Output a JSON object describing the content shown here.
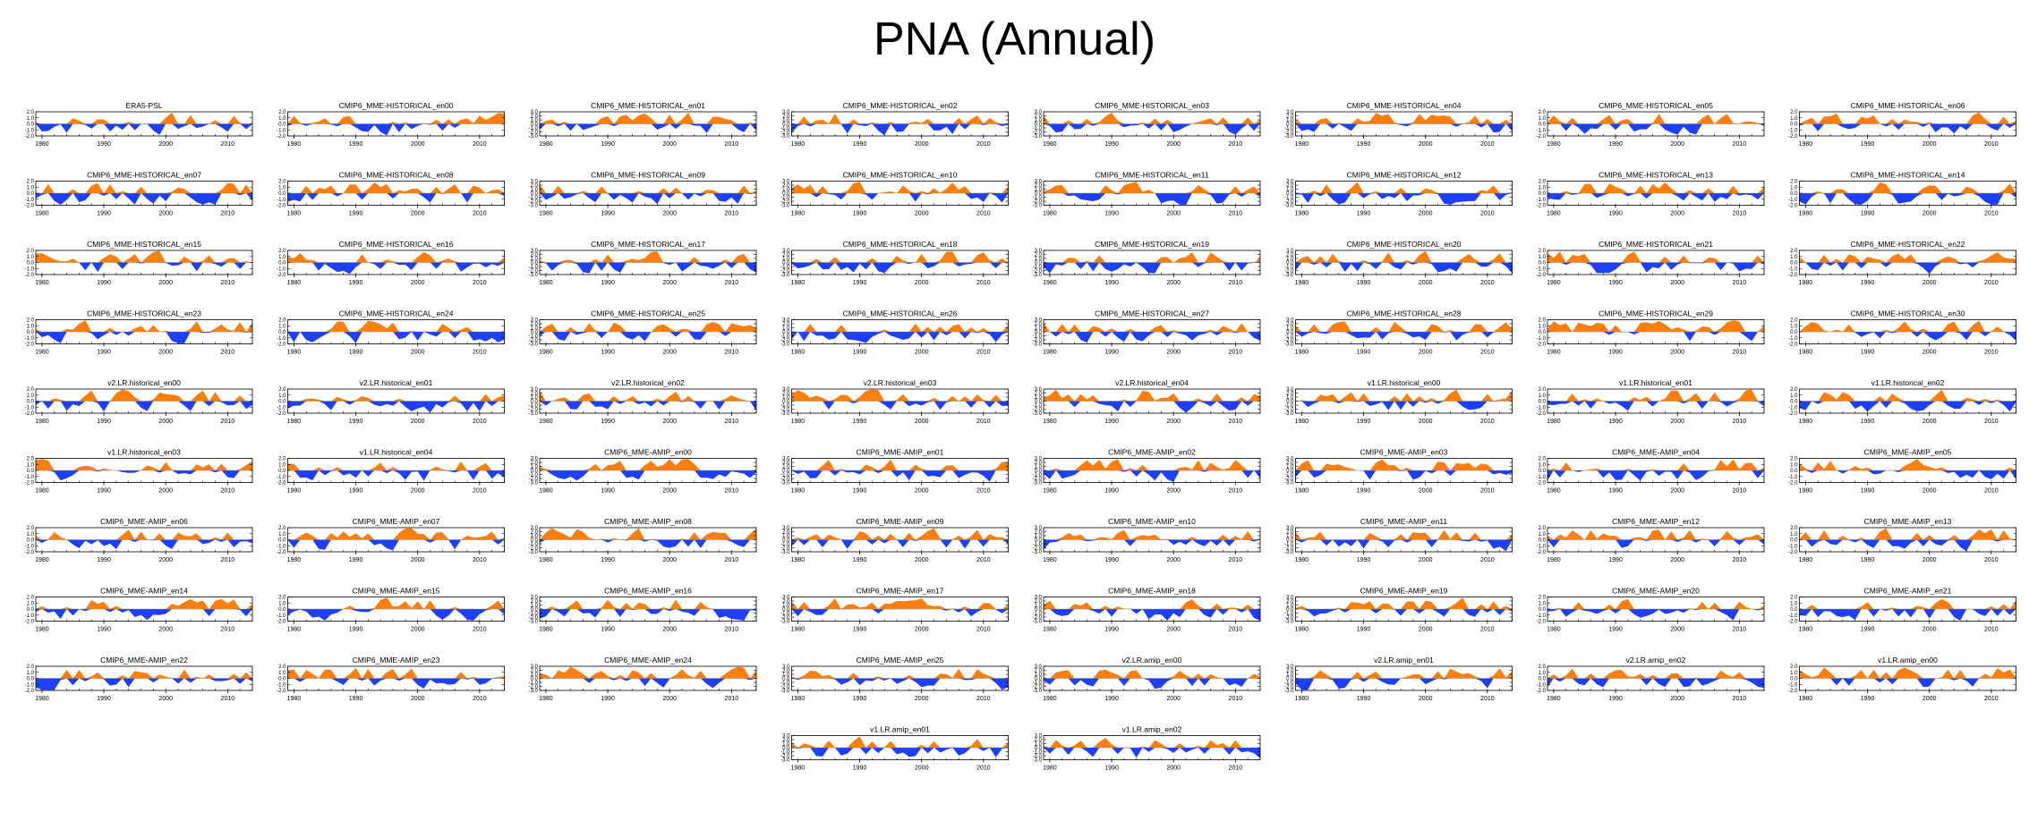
{
  "title": "PNA (Annual)",
  "colors": {
    "positive": "#ff7f0e",
    "negative": "#1f3fff",
    "axis": "#000000"
  },
  "chart_data": {
    "type": "area",
    "description_kind": "small-multiples anomaly time series",
    "xlim": [
      1979,
      2014
    ],
    "xticks": [
      1980,
      1990,
      2000,
      2010
    ],
    "panels": [
      {
        "name": "ERA5-PSL",
        "yticks": [
          "2.0",
          "1.0",
          "0.0",
          "-1.0",
          "-2.0"
        ],
        "ylim": [
          -2,
          2
        ]
      },
      {
        "name": "CMIP6_MME-HISTORICAL_en00",
        "yticks": [
          "2.0",
          "1.0",
          "0.0",
          "-1.0",
          "-2.0"
        ],
        "ylim": [
          -2,
          2
        ]
      },
      {
        "name": "CMIP6_MME-HISTORICAL_en01",
        "yticks": [
          "3.0",
          "2.0",
          "1.0",
          "0.0",
          "-1.0",
          "-2.0",
          "-3.0"
        ],
        "ylim": [
          -3,
          3
        ]
      },
      {
        "name": "CMIP6_MME-HISTORICAL_en02",
        "yticks": [
          "3.0",
          "2.0",
          "1.0",
          "0.0",
          "-1.0",
          "-2.0",
          "-3.0"
        ],
        "ylim": [
          -3,
          3
        ]
      },
      {
        "name": "CMIP6_MME-HISTORICAL_en03",
        "yticks": [
          "3.0",
          "2.0",
          "1.0",
          "0.0",
          "-1.0",
          "-2.0",
          "-3.0"
        ],
        "ylim": [
          -3,
          3
        ]
      },
      {
        "name": "CMIP6_MME-HISTORICAL_en04",
        "yticks": [
          "3.0",
          "2.0",
          "1.0",
          "0.0",
          "-1.0",
          "-2.0",
          "-3.0"
        ],
        "ylim": [
          -3,
          3
        ]
      },
      {
        "name": "CMIP6_MME-HISTORICAL_en05",
        "yticks": [
          "2.0",
          "1.0",
          "0.0",
          "-1.0",
          "-2.0"
        ],
        "ylim": [
          -2,
          2
        ]
      },
      {
        "name": "CMIP6_MME-HISTORICAL_en06",
        "yticks": [
          "2.0",
          "1.0",
          "0.0",
          "-1.0",
          "-2.0"
        ],
        "ylim": [
          -2,
          2
        ]
      },
      {
        "name": "CMIP6_MME-HISTORICAL_en07",
        "yticks": [
          "2.0",
          "1.0",
          "0.0",
          "-1.0",
          "-2.0"
        ],
        "ylim": [
          -2,
          2
        ]
      },
      {
        "name": "CMIP6_MME-HISTORICAL_en08",
        "yticks": [
          "2.0",
          "1.0",
          "0.0",
          "-1.0",
          "-2.0"
        ],
        "ylim": [
          -2,
          2
        ]
      },
      {
        "name": "CMIP6_MME-HISTORICAL_en09",
        "yticks": [
          "3.0",
          "2.0",
          "1.0",
          "0.0",
          "-1.0",
          "-2.0",
          "-3.0"
        ],
        "ylim": [
          -3,
          3
        ]
      },
      {
        "name": "CMIP6_MME-HISTORICAL_en10",
        "yticks": [
          "3.0",
          "2.0",
          "1.0",
          "0.0",
          "-1.0",
          "-2.0",
          "-3.0"
        ],
        "ylim": [
          -3,
          3
        ]
      },
      {
        "name": "CMIP6_MME-HISTORICAL_en11",
        "yticks": [
          "3.0",
          "2.0",
          "1.0",
          "0.0",
          "-1.0",
          "-2.0",
          "-3.0"
        ],
        "ylim": [
          -3,
          3
        ]
      },
      {
        "name": "CMIP6_MME-HISTORICAL_en12",
        "yticks": [
          "3.0",
          "2.0",
          "1.0",
          "0.0",
          "-1.0",
          "-2.0",
          "-3.0"
        ],
        "ylim": [
          -3,
          3
        ]
      },
      {
        "name": "CMIP6_MME-HISTORICAL_en13",
        "yticks": [
          "2.0",
          "1.0",
          "0.0",
          "-1.0",
          "-2.0"
        ],
        "ylim": [
          -2,
          2
        ]
      },
      {
        "name": "CMIP6_MME-HISTORICAL_en14",
        "yticks": [
          "2.0",
          "1.0",
          "0.0",
          "-1.0",
          "-2.0"
        ],
        "ylim": [
          -2,
          2
        ]
      },
      {
        "name": "CMIP6_MME-HISTORICAL_en15",
        "yticks": [
          "2.0",
          "1.0",
          "0.0",
          "-1.0",
          "-2.0"
        ],
        "ylim": [
          -2,
          2
        ]
      },
      {
        "name": "CMIP6_MME-HISTORICAL_en16",
        "yticks": [
          "2.0",
          "1.0",
          "0.0",
          "-1.0",
          "-2.0"
        ],
        "ylim": [
          -2,
          2
        ]
      },
      {
        "name": "CMIP6_MME-HISTORICAL_en17",
        "yticks": [
          "3.0",
          "2.0",
          "1.0",
          "0.0",
          "-1.0",
          "-2.0",
          "-3.0"
        ],
        "ylim": [
          -3,
          3
        ]
      },
      {
        "name": "CMIP6_MME-HISTORICAL_en18",
        "yticks": [
          "3.0",
          "2.0",
          "1.0",
          "0.0",
          "-1.0",
          "-2.0",
          "-3.0"
        ],
        "ylim": [
          -3,
          3
        ]
      },
      {
        "name": "CMIP6_MME-HISTORICAL_en19",
        "yticks": [
          "3.0",
          "2.0",
          "1.0",
          "0.0",
          "-1.0",
          "-2.0",
          "-3.0"
        ],
        "ylim": [
          -3,
          3
        ]
      },
      {
        "name": "CMIP6_MME-HISTORICAL_en20",
        "yticks": [
          "3.0",
          "2.0",
          "1.0",
          "0.0",
          "-1.0",
          "-2.0",
          "-3.0"
        ],
        "ylim": [
          -3,
          3
        ]
      },
      {
        "name": "CMIP6_MME-HISTORICAL_en21",
        "yticks": [
          "2.0",
          "1.0",
          "0.0",
          "-1.0",
          "-2.0"
        ],
        "ylim": [
          -2,
          2
        ]
      },
      {
        "name": "CMIP6_MME-HISTORICAL_en22",
        "yticks": [
          "2.0",
          "1.0",
          "0.0",
          "-1.0",
          "-2.0"
        ],
        "ylim": [
          -2,
          2
        ]
      },
      {
        "name": "CMIP6_MME-HISTORICAL_en23",
        "yticks": [
          "2.0",
          "1.0",
          "0.0",
          "-1.0",
          "-2.0"
        ],
        "ylim": [
          -2,
          2
        ]
      },
      {
        "name": "CMIP6_MME-HISTORICAL_en24",
        "yticks": [
          "2.0",
          "1.0",
          "0.0",
          "-1.0",
          "-2.0"
        ],
        "ylim": [
          -2,
          2
        ]
      },
      {
        "name": "CMIP6_MME-HISTORICAL_en25",
        "yticks": [
          "3.0",
          "2.0",
          "1.0",
          "0.0",
          "-1.0",
          "-2.0",
          "-3.0"
        ],
        "ylim": [
          -3,
          3
        ]
      },
      {
        "name": "CMIP6_MME-HISTORICAL_en26",
        "yticks": [
          "3.0",
          "2.0",
          "1.0",
          "0.0",
          "-1.0",
          "-2.0",
          "-3.0"
        ],
        "ylim": [
          -3,
          3
        ]
      },
      {
        "name": "CMIP6_MME-HISTORICAL_en27",
        "yticks": [
          "3.0",
          "2.0",
          "1.0",
          "0.0",
          "-1.0",
          "-2.0",
          "-3.0"
        ],
        "ylim": [
          -3,
          3
        ]
      },
      {
        "name": "CMIP6_MME-HISTORICAL_en28",
        "yticks": [
          "3.0",
          "2.0",
          "1.0",
          "0.0",
          "-1.0",
          "-2.0",
          "-3.0"
        ],
        "ylim": [
          -3,
          3
        ]
      },
      {
        "name": "CMIP6_MME-HISTORICAL_en29",
        "yticks": [
          "2.0",
          "1.0",
          "0.0",
          "-1.0",
          "-2.0"
        ],
        "ylim": [
          -2,
          2
        ]
      },
      {
        "name": "CMIP6_MME-HISTORICAL_en30",
        "yticks": [
          "2.0",
          "1.0",
          "0.0",
          "-1.0",
          "-2.0"
        ],
        "ylim": [
          -2,
          2
        ]
      },
      {
        "name": "v2.LR.historical_en00",
        "yticks": [
          "2.0",
          "1.0",
          "0.0",
          "-1.0",
          "-2.0"
        ],
        "ylim": [
          -2,
          2
        ]
      },
      {
        "name": "v2.LR.historical_en01",
        "yticks": [
          "2.0",
          "1.0",
          "0.0",
          "-1.0",
          "-2.0"
        ],
        "ylim": [
          -2,
          2
        ]
      },
      {
        "name": "v2.LR.historical_en02",
        "yticks": [
          "3.0",
          "2.0",
          "1.0",
          "0.0",
          "-1.0",
          "-2.0",
          "-3.0"
        ],
        "ylim": [
          -3,
          3
        ]
      },
      {
        "name": "v2.LR.historical_en03",
        "yticks": [
          "3.0",
          "2.0",
          "1.0",
          "0.0",
          "-1.0",
          "-2.0",
          "-3.0"
        ],
        "ylim": [
          -3,
          3
        ]
      },
      {
        "name": "v2.LR.historical_en04",
        "yticks": [
          "3.0",
          "2.0",
          "1.0",
          "0.0",
          "-1.0",
          "-2.0",
          "-3.0"
        ],
        "ylim": [
          -3,
          3
        ]
      },
      {
        "name": "v1.LR.historical_en00",
        "yticks": [
          "3.0",
          "2.0",
          "1.0",
          "0.0",
          "-1.0",
          "-2.0",
          "-3.0"
        ],
        "ylim": [
          -3,
          3
        ]
      },
      {
        "name": "v1.LR.historical_en01",
        "yticks": [
          "2.0",
          "1.0",
          "0.0",
          "-1.0",
          "-2.0"
        ],
        "ylim": [
          -2,
          2
        ]
      },
      {
        "name": "v1.LR.historical_en02",
        "yticks": [
          "2.0",
          "1.0",
          "0.0",
          "-1.0",
          "-2.0"
        ],
        "ylim": [
          -2,
          2
        ]
      },
      {
        "name": "v1.LR.historical_en03",
        "yticks": [
          "2.0",
          "1.0",
          "0.0",
          "-1.0",
          "-2.0"
        ],
        "ylim": [
          -2,
          2
        ]
      },
      {
        "name": "v1.LR.historical_en04",
        "yticks": [
          "2.0",
          "1.0",
          "0.0",
          "-1.0",
          "-2.0"
        ],
        "ylim": [
          -2,
          2
        ]
      },
      {
        "name": "CMIP6_MME-AMIP_en00",
        "yticks": [
          "3.0",
          "2.0",
          "1.0",
          "0.0",
          "-1.0",
          "-2.0",
          "-3.0"
        ],
        "ylim": [
          -3,
          3
        ]
      },
      {
        "name": "CMIP6_MME-AMIP_en01",
        "yticks": [
          "3.0",
          "2.0",
          "1.0",
          "0.0",
          "-1.0",
          "-2.0",
          "-3.0"
        ],
        "ylim": [
          -3,
          3
        ]
      },
      {
        "name": "CMIP6_MME-AMIP_en02",
        "yticks": [
          "3.0",
          "2.0",
          "1.0",
          "0.0",
          "-1.0",
          "-2.0",
          "-3.0"
        ],
        "ylim": [
          -3,
          3
        ]
      },
      {
        "name": "CMIP6_MME-AMIP_en03",
        "yticks": [
          "3.0",
          "2.0",
          "1.0",
          "0.0",
          "-1.0",
          "-2.0",
          "-3.0"
        ],
        "ylim": [
          -3,
          3
        ]
      },
      {
        "name": "CMIP6_MME-AMIP_en04",
        "yticks": [
          "2.0",
          "1.0",
          "0.0",
          "-1.0",
          "-2.0"
        ],
        "ylim": [
          -2,
          2
        ]
      },
      {
        "name": "CMIP6_MME-AMIP_en05",
        "yticks": [
          "2.0",
          "1.0",
          "0.0",
          "-1.0",
          "-2.0"
        ],
        "ylim": [
          -2,
          2
        ]
      },
      {
        "name": "CMIP6_MME-AMIP_en06",
        "yticks": [
          "2.0",
          "1.0",
          "0.0",
          "-1.0",
          "-2.0"
        ],
        "ylim": [
          -2,
          2
        ]
      },
      {
        "name": "CMIP6_MME-AMIP_en07",
        "yticks": [
          "2.0",
          "1.0",
          "0.0",
          "-1.0",
          "-2.0"
        ],
        "ylim": [
          -2,
          2
        ]
      },
      {
        "name": "CMIP6_MME-AMIP_en08",
        "yticks": [
          "3.0",
          "2.0",
          "1.0",
          "0.0",
          "-1.0",
          "-2.0",
          "-3.0"
        ],
        "ylim": [
          -3,
          3
        ]
      },
      {
        "name": "CMIP6_MME-AMIP_en09",
        "yticks": [
          "3.0",
          "2.0",
          "1.0",
          "0.0",
          "-1.0",
          "-2.0",
          "-3.0"
        ],
        "ylim": [
          -3,
          3
        ]
      },
      {
        "name": "CMIP6_MME-AMIP_en10",
        "yticks": [
          "3.0",
          "2.0",
          "1.0",
          "0.0",
          "-1.0",
          "-2.0",
          "-3.0"
        ],
        "ylim": [
          -3,
          3
        ]
      },
      {
        "name": "CMIP6_MME-AMIP_en11",
        "yticks": [
          "3.0",
          "2.0",
          "1.0",
          "0.0",
          "-1.0",
          "-2.0",
          "-3.0"
        ],
        "ylim": [
          -3,
          3
        ]
      },
      {
        "name": "CMIP6_MME-AMIP_en12",
        "yticks": [
          "2.0",
          "1.0",
          "0.0",
          "-1.0",
          "-2.0"
        ],
        "ylim": [
          -2,
          2
        ]
      },
      {
        "name": "CMIP6_MME-AMIP_en13",
        "yticks": [
          "2.0",
          "1.0",
          "0.0",
          "-1.0",
          "-2.0"
        ],
        "ylim": [
          -2,
          2
        ]
      },
      {
        "name": "CMIP6_MME-AMIP_en14",
        "yticks": [
          "2.0",
          "1.0",
          "0.0",
          "-1.0",
          "-2.0"
        ],
        "ylim": [
          -2,
          2
        ]
      },
      {
        "name": "CMIP6_MME-AMIP_en15",
        "yticks": [
          "2.0",
          "1.0",
          "0.0",
          "-1.0",
          "-2.0"
        ],
        "ylim": [
          -2,
          2
        ]
      },
      {
        "name": "CMIP6_MME-AMIP_en16",
        "yticks": [
          "3.0",
          "2.0",
          "1.0",
          "0.0",
          "-1.0",
          "-2.0",
          "-3.0"
        ],
        "ylim": [
          -3,
          3
        ]
      },
      {
        "name": "CMIP6_MME-AMIP_en17",
        "yticks": [
          "3.0",
          "2.0",
          "1.0",
          "0.0",
          "-1.0",
          "-2.0",
          "-3.0"
        ],
        "ylim": [
          -3,
          3
        ]
      },
      {
        "name": "CMIP6_MME-AMIP_en18",
        "yticks": [
          "3.0",
          "2.0",
          "1.0",
          "0.0",
          "-1.0",
          "-2.0",
          "-3.0"
        ],
        "ylim": [
          -3,
          3
        ]
      },
      {
        "name": "CMIP6_MME-AMIP_en19",
        "yticks": [
          "3.0",
          "2.0",
          "1.0",
          "0.0",
          "-1.0",
          "-2.0",
          "-3.0"
        ],
        "ylim": [
          -3,
          3
        ]
      },
      {
        "name": "CMIP6_MME-AMIP_en20",
        "yticks": [
          "2.0",
          "1.0",
          "0.0",
          "-1.0",
          "-2.0"
        ],
        "ylim": [
          -2,
          2
        ]
      },
      {
        "name": "CMIP6_MME-AMIP_en21",
        "yticks": [
          "2.0",
          "1.0",
          "0.0",
          "-1.0",
          "-2.0"
        ],
        "ylim": [
          -2,
          2
        ]
      },
      {
        "name": "CMIP6_MME-AMIP_en22",
        "yticks": [
          "2.0",
          "1.0",
          "0.0",
          "-1.0",
          "-2.0"
        ],
        "ylim": [
          -2,
          2
        ]
      },
      {
        "name": "CMIP6_MME-AMIP_en23",
        "yticks": [
          "2.0",
          "1.0",
          "0.0",
          "-1.0",
          "-2.0"
        ],
        "ylim": [
          -2,
          2
        ]
      },
      {
        "name": "CMIP6_MME-AMIP_en24",
        "yticks": [
          "3.0",
          "2.0",
          "1.0",
          "0.0",
          "-1.0",
          "-2.0",
          "-3.0"
        ],
        "ylim": [
          -3,
          3
        ]
      },
      {
        "name": "CMIP6_MME-AMIP_en25",
        "yticks": [
          "3.0",
          "2.0",
          "1.0",
          "0.0",
          "-1.0",
          "-2.0",
          "-3.0"
        ],
        "ylim": [
          -3,
          3
        ]
      },
      {
        "name": "v2.LR.amip_en00",
        "yticks": [
          "3.0",
          "2.0",
          "1.0",
          "0.0",
          "-1.0",
          "-2.0",
          "-3.0"
        ],
        "ylim": [
          -3,
          3
        ]
      },
      {
        "name": "v2.LR.amip_en01",
        "yticks": [
          "3.0",
          "2.0",
          "1.0",
          "0.0",
          "-1.0",
          "-2.0",
          "-3.0"
        ],
        "ylim": [
          -3,
          3
        ]
      },
      {
        "name": "v2.LR.amip_en02",
        "yticks": [
          "2.0",
          "1.0",
          "0.0",
          "-1.0",
          "-2.0"
        ],
        "ylim": [
          -2,
          2
        ]
      },
      {
        "name": "v1.LR.amip_en00",
        "yticks": [
          "2.0",
          "1.0",
          "0.0",
          "-1.0",
          "-2.0"
        ],
        "ylim": [
          -2,
          2
        ]
      },
      {
        "name": "v1.LR.amip_en01",
        "yticks": [
          "3.0",
          "2.0",
          "1.0",
          "0.0",
          "-1.0",
          "-2.0",
          "-3.0"
        ],
        "ylim": [
          -3,
          3
        ]
      },
      {
        "name": "v1.LR.amip_en02",
        "yticks": [
          "3.0",
          "2.0",
          "1.0",
          "0.0",
          "-1.0",
          "-2.0",
          "-3.0"
        ],
        "ylim": [
          -3,
          3
        ]
      }
    ]
  }
}
